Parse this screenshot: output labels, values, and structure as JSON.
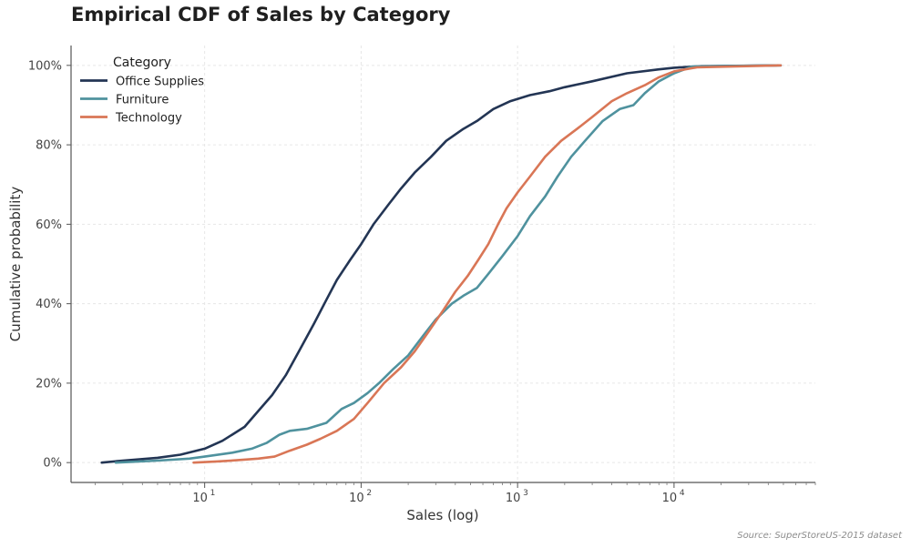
{
  "chart_data": {
    "type": "line",
    "title": "Empirical CDF of Sales by Category",
    "xlabel": "Sales (log)",
    "ylabel": "Cumulative probability",
    "x_scale": "log",
    "xlim": [
      1.4,
      80000
    ],
    "ylim": [
      -0.05,
      1.05
    ],
    "x_ticks": [
      {
        "value": 10,
        "label": "10",
        "exp": "1"
      },
      {
        "value": 100,
        "label": "10",
        "exp": "2"
      },
      {
        "value": 1000,
        "label": "10",
        "exp": "3"
      },
      {
        "value": 10000,
        "label": "10",
        "exp": "4"
      }
    ],
    "y_ticks": [
      {
        "value": 0,
        "label": "0%"
      },
      {
        "value": 0.2,
        "label": "20%"
      },
      {
        "value": 0.4,
        "label": "40%"
      },
      {
        "value": 0.6,
        "label": "60%"
      },
      {
        "value": 0.8,
        "label": "80%"
      },
      {
        "value": 1.0,
        "label": "100%"
      }
    ],
    "grid": true,
    "legend": {
      "title": "Category",
      "placement": "top-left"
    },
    "series": [
      {
        "name": "Office Supplies",
        "color": "#233554",
        "points": [
          [
            2.2,
            0.0
          ],
          [
            3,
            0.005
          ],
          [
            5,
            0.012
          ],
          [
            7,
            0.02
          ],
          [
            10,
            0.035
          ],
          [
            13,
            0.055
          ],
          [
            18,
            0.09
          ],
          [
            22,
            0.13
          ],
          [
            27,
            0.17
          ],
          [
            33,
            0.22
          ],
          [
            40,
            0.28
          ],
          [
            50,
            0.35
          ],
          [
            60,
            0.41
          ],
          [
            70,
            0.46
          ],
          [
            85,
            0.51
          ],
          [
            100,
            0.55
          ],
          [
            120,
            0.6
          ],
          [
            150,
            0.65
          ],
          [
            180,
            0.69
          ],
          [
            220,
            0.73
          ],
          [
            280,
            0.77
          ],
          [
            350,
            0.81
          ],
          [
            450,
            0.84
          ],
          [
            550,
            0.86
          ],
          [
            700,
            0.89
          ],
          [
            900,
            0.91
          ],
          [
            1200,
            0.925
          ],
          [
            1600,
            0.935
          ],
          [
            2000,
            0.945
          ],
          [
            3000,
            0.96
          ],
          [
            5000,
            0.98
          ],
          [
            8000,
            0.99
          ],
          [
            10000,
            0.994
          ],
          [
            15000,
            0.998
          ],
          [
            48000,
            1.0
          ]
        ]
      },
      {
        "name": "Furniture",
        "color": "#4f929e",
        "points": [
          [
            2.7,
            0.0
          ],
          [
            5,
            0.005
          ],
          [
            8,
            0.01
          ],
          [
            10,
            0.015
          ],
          [
            15,
            0.025
          ],
          [
            20,
            0.035
          ],
          [
            25,
            0.05
          ],
          [
            30,
            0.07
          ],
          [
            35,
            0.08
          ],
          [
            45,
            0.085
          ],
          [
            60,
            0.1
          ],
          [
            75,
            0.135
          ],
          [
            90,
            0.15
          ],
          [
            110,
            0.175
          ],
          [
            130,
            0.2
          ],
          [
            160,
            0.235
          ],
          [
            200,
            0.27
          ],
          [
            250,
            0.32
          ],
          [
            300,
            0.36
          ],
          [
            380,
            0.4
          ],
          [
            450,
            0.42
          ],
          [
            550,
            0.44
          ],
          [
            650,
            0.475
          ],
          [
            800,
            0.52
          ],
          [
            1000,
            0.57
          ],
          [
            1200,
            0.62
          ],
          [
            1500,
            0.67
          ],
          [
            1800,
            0.72
          ],
          [
            2200,
            0.77
          ],
          [
            2700,
            0.81
          ],
          [
            3500,
            0.86
          ],
          [
            4500,
            0.89
          ],
          [
            5500,
            0.9
          ],
          [
            6500,
            0.93
          ],
          [
            8000,
            0.96
          ],
          [
            10000,
            0.98
          ],
          [
            13000,
            0.997
          ],
          [
            45000,
            1.0
          ]
        ]
      },
      {
        "name": "Technology",
        "color": "#d97656",
        "points": [
          [
            8.5,
            0.0
          ],
          [
            12,
            0.003
          ],
          [
            16,
            0.006
          ],
          [
            22,
            0.01
          ],
          [
            28,
            0.015
          ],
          [
            35,
            0.03
          ],
          [
            45,
            0.045
          ],
          [
            55,
            0.06
          ],
          [
            70,
            0.08
          ],
          [
            90,
            0.11
          ],
          [
            110,
            0.15
          ],
          [
            140,
            0.2
          ],
          [
            180,
            0.24
          ],
          [
            220,
            0.28
          ],
          [
            270,
            0.33
          ],
          [
            330,
            0.38
          ],
          [
            400,
            0.43
          ],
          [
            480,
            0.47
          ],
          [
            560,
            0.51
          ],
          [
            650,
            0.55
          ],
          [
            750,
            0.6
          ],
          [
            850,
            0.64
          ],
          [
            1000,
            0.68
          ],
          [
            1200,
            0.72
          ],
          [
            1500,
            0.77
          ],
          [
            1900,
            0.81
          ],
          [
            2400,
            0.84
          ],
          [
            3000,
            0.87
          ],
          [
            4000,
            0.91
          ],
          [
            5000,
            0.93
          ],
          [
            6500,
            0.95
          ],
          [
            8000,
            0.97
          ],
          [
            10000,
            0.985
          ],
          [
            14000,
            0.995
          ],
          [
            48000,
            1.0
          ]
        ]
      }
    ]
  },
  "source_note": "Source: SuperStoreUS-2015 dataset"
}
